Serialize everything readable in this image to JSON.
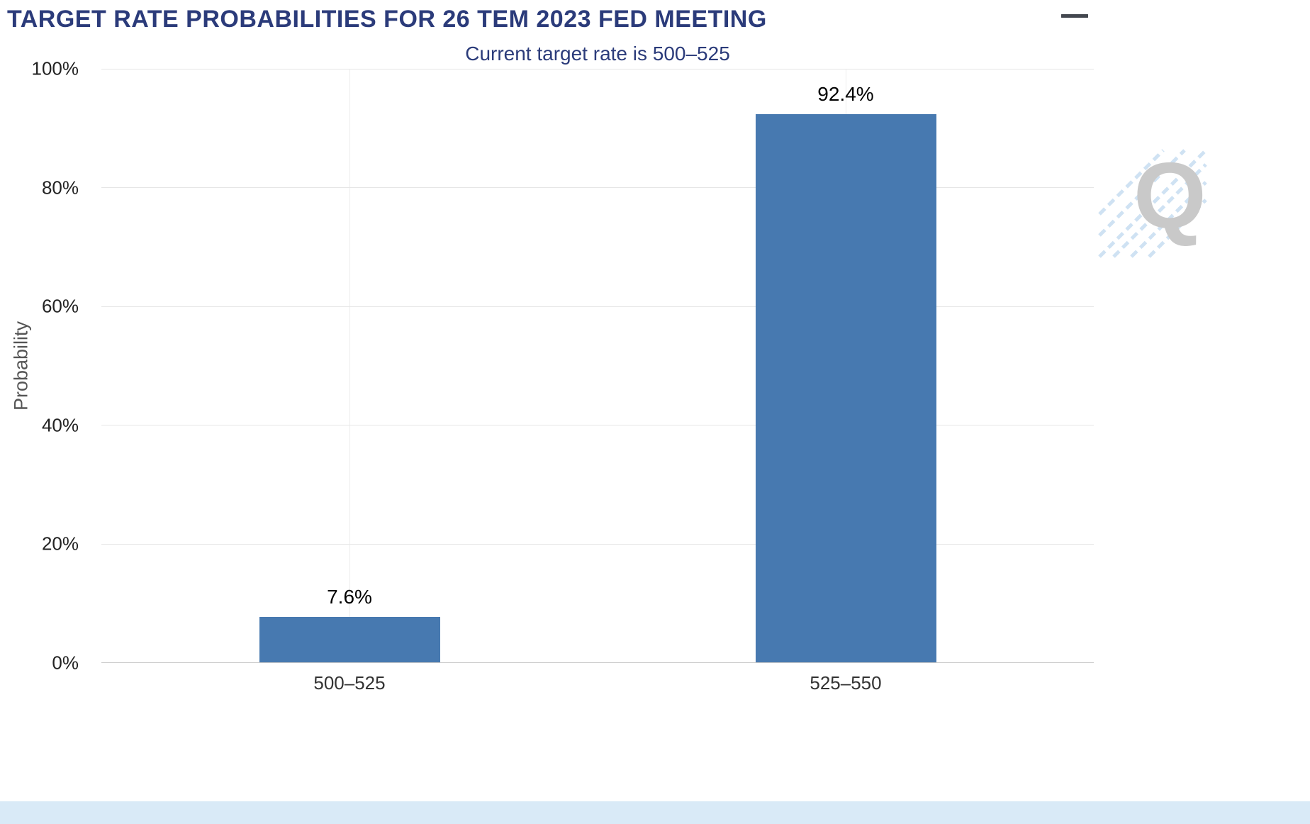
{
  "chart_data": {
    "type": "bar",
    "title": "TARGET RATE PROBABILITIES FOR 26 TEM 2023 FED MEETING",
    "subtitle": "Current target rate is 500–525",
    "categories": [
      "500–525",
      "525–550"
    ],
    "values": [
      7.6,
      92.4
    ],
    "value_labels": [
      "7.6%",
      "92.4%"
    ],
    "xlabel": "",
    "ylabel": "Probability",
    "ylim": [
      0,
      100
    ],
    "ytick_step": 20,
    "yticks": [
      "0%",
      "20%",
      "40%",
      "60%",
      "80%",
      "100%"
    ],
    "grid": true,
    "legend": "none",
    "bar_color": "#4779b0",
    "watermark_letter": "Q"
  },
  "colors": {
    "title_text": "#2b3b7a",
    "subtitle_text": "#2b3b7a",
    "bar_fill": "#4779b0",
    "gridline": "#e6e6e6",
    "axis_line": "#c9c9c9",
    "tick_text": "#222222",
    "category_text": "#333333",
    "watermark_gray": "#c9c9c9",
    "watermark_blue": "#cfe2f3",
    "bottom_strip": "#d9eaf7"
  },
  "controls": {
    "menu_icon": "hamburger-menu"
  }
}
